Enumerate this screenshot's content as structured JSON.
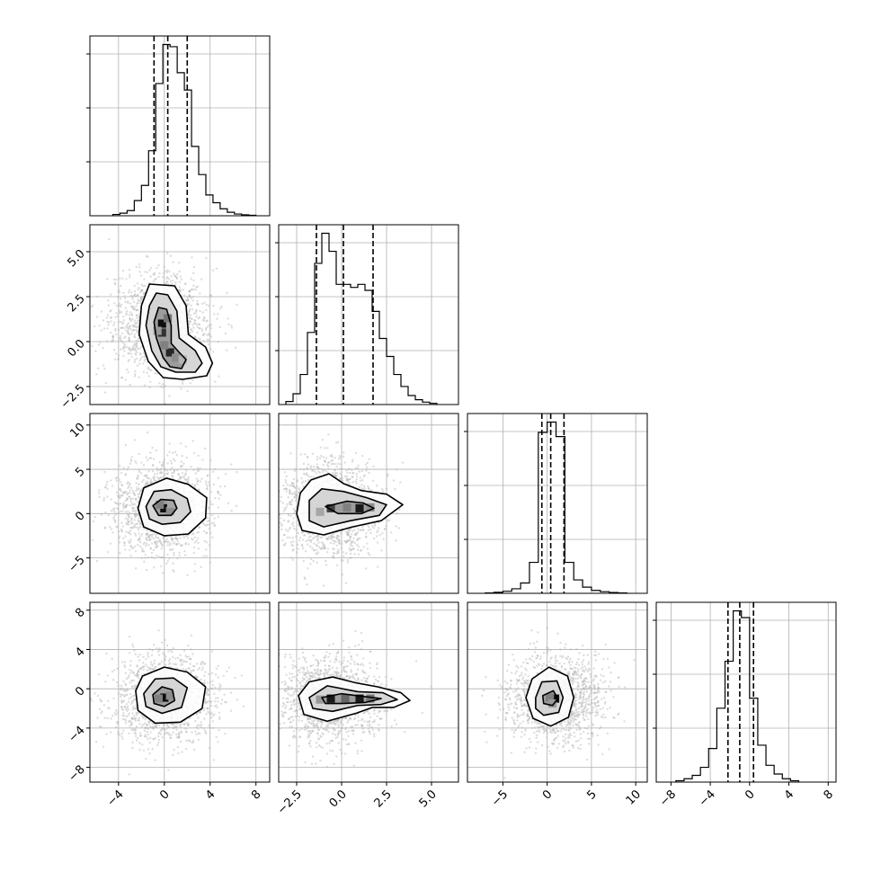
{
  "figure": {
    "type": "corner-plot",
    "grid": true
  },
  "chart_data": {
    "type": "corner",
    "parameters": 4,
    "diagonal_type": "histogram",
    "offdiagonal_type": "scatter-density-contour",
    "colors": {
      "line": "#000000",
      "grid": "#b0b0b0",
      "points": "#b4b4b4",
      "density": "#000000"
    },
    "axes": [
      {
        "index": 0,
        "xlim": [
          -6.5,
          9.2
        ],
        "tick_values": [
          -4,
          0,
          4,
          8
        ],
        "tick_labels": [
          "−4",
          "0",
          "4",
          "8"
        ]
      },
      {
        "index": 1,
        "xlim": [
          -3.5,
          6.5
        ],
        "tick_values": [
          -2.5,
          0.0,
          2.5,
          5.0
        ],
        "tick_labels": [
          "−2.5",
          "0.0",
          "2.5",
          "5.0"
        ]
      },
      {
        "index": 2,
        "xlim": [
          -9.0,
          11.3
        ],
        "tick_values": [
          -5,
          0,
          5,
          10
        ],
        "tick_labels": [
          "−5",
          "0",
          "5",
          "10"
        ]
      },
      {
        "index": 3,
        "xlim": [
          -9.5,
          8.8
        ],
        "tick_values": [
          -8,
          -4,
          0,
          4,
          8
        ],
        "tick_labels": [
          "−8",
          "−4",
          "0",
          "4",
          "8"
        ]
      }
    ],
    "histograms": [
      {
        "param": 0,
        "range": [
          -4.5,
          8.0
        ],
        "counts": [
          3,
          6,
          12,
          35,
          70,
          150,
          305,
          395,
          390,
          330,
          290,
          160,
          95,
          48,
          30,
          16,
          8,
          4,
          2,
          1
        ],
        "quantiles": [
          -0.9,
          0.3,
          2.0
        ]
      },
      {
        "param": 1,
        "range": [
          -3.1,
          5.3
        ],
        "counts": [
          5,
          18,
          50,
          120,
          235,
          285,
          255,
          200,
          200,
          195,
          200,
          190,
          155,
          110,
          80,
          50,
          30,
          15,
          8,
          4,
          2
        ],
        "quantiles": [
          -1.4,
          0.1,
          1.75
        ]
      },
      {
        "param": 2,
        "range": [
          -7.0,
          9.0
        ],
        "counts": [
          2,
          5,
          10,
          22,
          50,
          150,
          780,
          830,
          760,
          150,
          65,
          30,
          14,
          8,
          4,
          2
        ],
        "quantiles": [
          -0.6,
          0.4,
          1.9
        ]
      },
      {
        "param": 3,
        "range": [
          -7.5,
          5.0
        ],
        "counts": [
          2,
          5,
          10,
          22,
          50,
          110,
          180,
          255,
          245,
          125,
          55,
          25,
          12,
          5,
          2
        ],
        "quantiles": [
          -2.2,
          -1.0,
          0.4
        ]
      }
    ],
    "pairs": [
      {
        "x": 0,
        "y": 1,
        "contours": [
          [
            [
              -1.3,
              3.2
            ],
            [
              0.9,
              3.1
            ],
            [
              1.9,
              2.0
            ],
            [
              2.1,
              0.4
            ],
            [
              3.6,
              -0.3
            ],
            [
              4.2,
              -1.2
            ],
            [
              3.7,
              -1.9
            ],
            [
              1.6,
              -2.1
            ],
            [
              -0.1,
              -2.0
            ],
            [
              -1.4,
              -1.1
            ],
            [
              -2.2,
              0.4
            ],
            [
              -2.0,
              2.0
            ]
          ],
          [
            [
              -0.7,
              2.7
            ],
            [
              0.3,
              2.6
            ],
            [
              1.1,
              1.7
            ],
            [
              1.3,
              0.2
            ],
            [
              2.7,
              -0.5
            ],
            [
              3.3,
              -1.2
            ],
            [
              2.7,
              -1.7
            ],
            [
              1.0,
              -1.7
            ],
            [
              -0.3,
              -1.4
            ],
            [
              -1.1,
              -0.5
            ],
            [
              -1.6,
              0.9
            ],
            [
              -1.3,
              2.0
            ]
          ],
          [
            [
              -0.5,
              1.9
            ],
            [
              0.2,
              1.8
            ],
            [
              0.6,
              0.9
            ],
            [
              0.6,
              -0.1
            ],
            [
              1.3,
              -0.6
            ],
            [
              1.9,
              -1.0
            ],
            [
              1.5,
              -1.5
            ],
            [
              0.5,
              -1.4
            ],
            [
              -0.1,
              -0.9
            ],
            [
              -0.7,
              0.2
            ],
            [
              -0.9,
              1.1
            ]
          ]
        ],
        "density_cells": [
          {
            "x": -0.2,
            "y": 1.0,
            "level": 0.95
          },
          {
            "x": -0.2,
            "y": 0.5,
            "level": 0.8
          },
          {
            "x": 0.3,
            "y": 1.3,
            "level": 0.55
          },
          {
            "x": 0.5,
            "y": -0.6,
            "level": 0.85
          },
          {
            "x": 0.0,
            "y": -0.2,
            "level": 0.5
          },
          {
            "x": 1.0,
            "y": -0.9,
            "level": 0.45
          },
          {
            "x": -0.6,
            "y": 0.6,
            "level": 0.4
          },
          {
            "x": 1.6,
            "y": -1.0,
            "level": 0.3
          }
        ]
      },
      {
        "x": 0,
        "y": 2,
        "contours": [
          [
            [
              -2.3,
              0.6
            ],
            [
              -1.8,
              2.9
            ],
            [
              0.2,
              4.0
            ],
            [
              2.1,
              3.3
            ],
            [
              3.7,
              1.8
            ],
            [
              3.6,
              -0.5
            ],
            [
              2.1,
              -2.3
            ],
            [
              0.0,
              -2.5
            ],
            [
              -1.8,
              -1.5
            ]
          ],
          [
            [
              -1.6,
              0.8
            ],
            [
              -0.9,
              2.5
            ],
            [
              0.6,
              2.7
            ],
            [
              2.0,
              1.7
            ],
            [
              2.3,
              0.2
            ],
            [
              1.4,
              -1.0
            ],
            [
              -0.2,
              -1.2
            ],
            [
              -1.3,
              -0.6
            ]
          ],
          [
            [
              -1.0,
              0.9
            ],
            [
              -0.3,
              1.6
            ],
            [
              0.8,
              1.5
            ],
            [
              1.1,
              0.6
            ],
            [
              0.6,
              -0.2
            ],
            [
              -0.5,
              -0.2
            ]
          ]
        ],
        "density_cells": [
          {
            "x": 0.0,
            "y": 0.6,
            "level": 0.95
          },
          {
            "x": -0.4,
            "y": 1.0,
            "level": 0.5
          },
          {
            "x": 0.5,
            "y": 0.3,
            "level": 0.45
          },
          {
            "x": 0.6,
            "y": 1.1,
            "level": 0.35
          }
        ]
      },
      {
        "x": 1,
        "y": 2,
        "contours": [
          [
            [
              -2.3,
              2.3
            ],
            [
              -1.7,
              3.8
            ],
            [
              -0.7,
              4.5
            ],
            [
              0.1,
              3.4
            ],
            [
              1.1,
              2.6
            ],
            [
              2.5,
              2.2
            ],
            [
              3.4,
              1.0
            ],
            [
              2.2,
              -0.8
            ],
            [
              0.6,
              -1.5
            ],
            [
              -1.0,
              -2.4
            ],
            [
              -2.2,
              -1.9
            ],
            [
              -2.5,
              0.0
            ]
          ],
          [
            [
              -1.8,
              1.5
            ],
            [
              -1.1,
              2.8
            ],
            [
              0.1,
              2.5
            ],
            [
              1.4,
              1.8
            ],
            [
              2.5,
              1.0
            ],
            [
              2.1,
              -0.2
            ],
            [
              0.5,
              -0.8
            ],
            [
              -1.0,
              -1.5
            ],
            [
              -1.8,
              -0.8
            ]
          ],
          [
            [
              -0.9,
              0.8
            ],
            [
              0.3,
              1.4
            ],
            [
              1.2,
              1.2
            ],
            [
              1.8,
              0.6
            ],
            [
              1.1,
              0.0
            ],
            [
              -0.2,
              0.0
            ]
          ]
        ],
        "density_cells": [
          {
            "x": -0.6,
            "y": 0.6,
            "level": 0.75
          },
          {
            "x": 1.0,
            "y": 0.6,
            "level": 0.9
          },
          {
            "x": 0.3,
            "y": 0.7,
            "level": 0.5
          },
          {
            "x": 1.6,
            "y": 0.7,
            "level": 0.45
          },
          {
            "x": -1.2,
            "y": 0.2,
            "level": 0.35
          }
        ]
      },
      {
        "x": 0,
        "y": 3,
        "contours": [
          [
            [
              -2.5,
              -0.2
            ],
            [
              -1.9,
              1.3
            ],
            [
              0.0,
              2.2
            ],
            [
              2.0,
              1.7
            ],
            [
              3.6,
              0.2
            ],
            [
              3.3,
              -2.0
            ],
            [
              1.4,
              -3.4
            ],
            [
              -0.8,
              -3.5
            ],
            [
              -2.3,
              -2.2
            ]
          ],
          [
            [
              -1.8,
              -0.5
            ],
            [
              -0.8,
              1.0
            ],
            [
              0.8,
              1.1
            ],
            [
              2.0,
              0.1
            ],
            [
              1.5,
              -1.9
            ],
            [
              -0.2,
              -2.5
            ],
            [
              -1.6,
              -1.8
            ]
          ],
          [
            [
              -1.0,
              -0.6
            ],
            [
              -0.2,
              0.2
            ],
            [
              0.7,
              -0.1
            ],
            [
              0.9,
              -1.2
            ],
            [
              0.0,
              -1.8
            ],
            [
              -0.9,
              -1.5
            ]
          ]
        ],
        "density_cells": [
          {
            "x": 0.0,
            "y": -0.9,
            "level": 0.95
          },
          {
            "x": -0.5,
            "y": -1.0,
            "level": 0.5
          },
          {
            "x": 0.5,
            "y": -0.7,
            "level": 0.45
          }
        ]
      },
      {
        "x": 1,
        "y": 3,
        "contours": [
          [
            [
              -2.4,
              -0.7
            ],
            [
              -1.8,
              0.7
            ],
            [
              -0.5,
              1.2
            ],
            [
              0.8,
              0.6
            ],
            [
              2.0,
              0.2
            ],
            [
              3.3,
              -0.4
            ],
            [
              3.8,
              -1.2
            ],
            [
              2.9,
              -1.9
            ],
            [
              1.7,
              -1.9
            ],
            [
              0.8,
              -2.5
            ],
            [
              -0.8,
              -3.3
            ],
            [
              -2.1,
              -2.6
            ]
          ],
          [
            [
              -1.8,
              -0.9
            ],
            [
              -0.8,
              0.3
            ],
            [
              0.9,
              -0.3
            ],
            [
              2.3,
              -0.4
            ],
            [
              3.1,
              -1.1
            ],
            [
              2.2,
              -1.6
            ],
            [
              0.9,
              -1.7
            ],
            [
              -0.5,
              -2.3
            ],
            [
              -1.6,
              -2.0
            ]
          ],
          [
            [
              -1.1,
              -0.9
            ],
            [
              0.0,
              -0.5
            ],
            [
              1.3,
              -0.8
            ],
            [
              2.2,
              -1.0
            ],
            [
              1.3,
              -1.4
            ],
            [
              0.0,
              -1.5
            ],
            [
              -0.9,
              -1.5
            ]
          ]
        ],
        "density_cells": [
          {
            "x": -0.6,
            "y": -1.0,
            "level": 0.9
          },
          {
            "x": 1.0,
            "y": -1.0,
            "level": 0.9
          },
          {
            "x": 0.2,
            "y": -1.0,
            "level": 0.6
          },
          {
            "x": 1.6,
            "y": -1.0,
            "level": 0.55
          },
          {
            "x": -1.2,
            "y": -1.1,
            "level": 0.4
          }
        ]
      },
      {
        "x": 2,
        "y": 3,
        "contours": [
          [
            [
              -2.4,
              -0.9
            ],
            [
              -1.7,
              1.0
            ],
            [
              0.2,
              2.2
            ],
            [
              2.3,
              1.3
            ],
            [
              3.0,
              -0.9
            ],
            [
              2.4,
              -2.9
            ],
            [
              0.4,
              -3.8
            ],
            [
              -1.6,
              -3.0
            ]
          ],
          [
            [
              -1.3,
              -0.9
            ],
            [
              -0.6,
              0.7
            ],
            [
              1.1,
              0.8
            ],
            [
              1.8,
              -0.9
            ],
            [
              1.3,
              -2.4
            ],
            [
              -0.4,
              -2.7
            ],
            [
              -1.3,
              -2.0
            ]
          ],
          [
            [
              -0.5,
              -0.7
            ],
            [
              0.7,
              -0.2
            ],
            [
              1.2,
              -1.0
            ],
            [
              0.6,
              -1.7
            ],
            [
              -0.4,
              -1.5
            ]
          ]
        ],
        "density_cells": [
          {
            "x": 0.9,
            "y": -1.0,
            "level": 0.95
          },
          {
            "x": 0.3,
            "y": -0.9,
            "level": 0.5
          },
          {
            "x": 0.6,
            "y": -1.5,
            "level": 0.4
          }
        ]
      }
    ]
  }
}
